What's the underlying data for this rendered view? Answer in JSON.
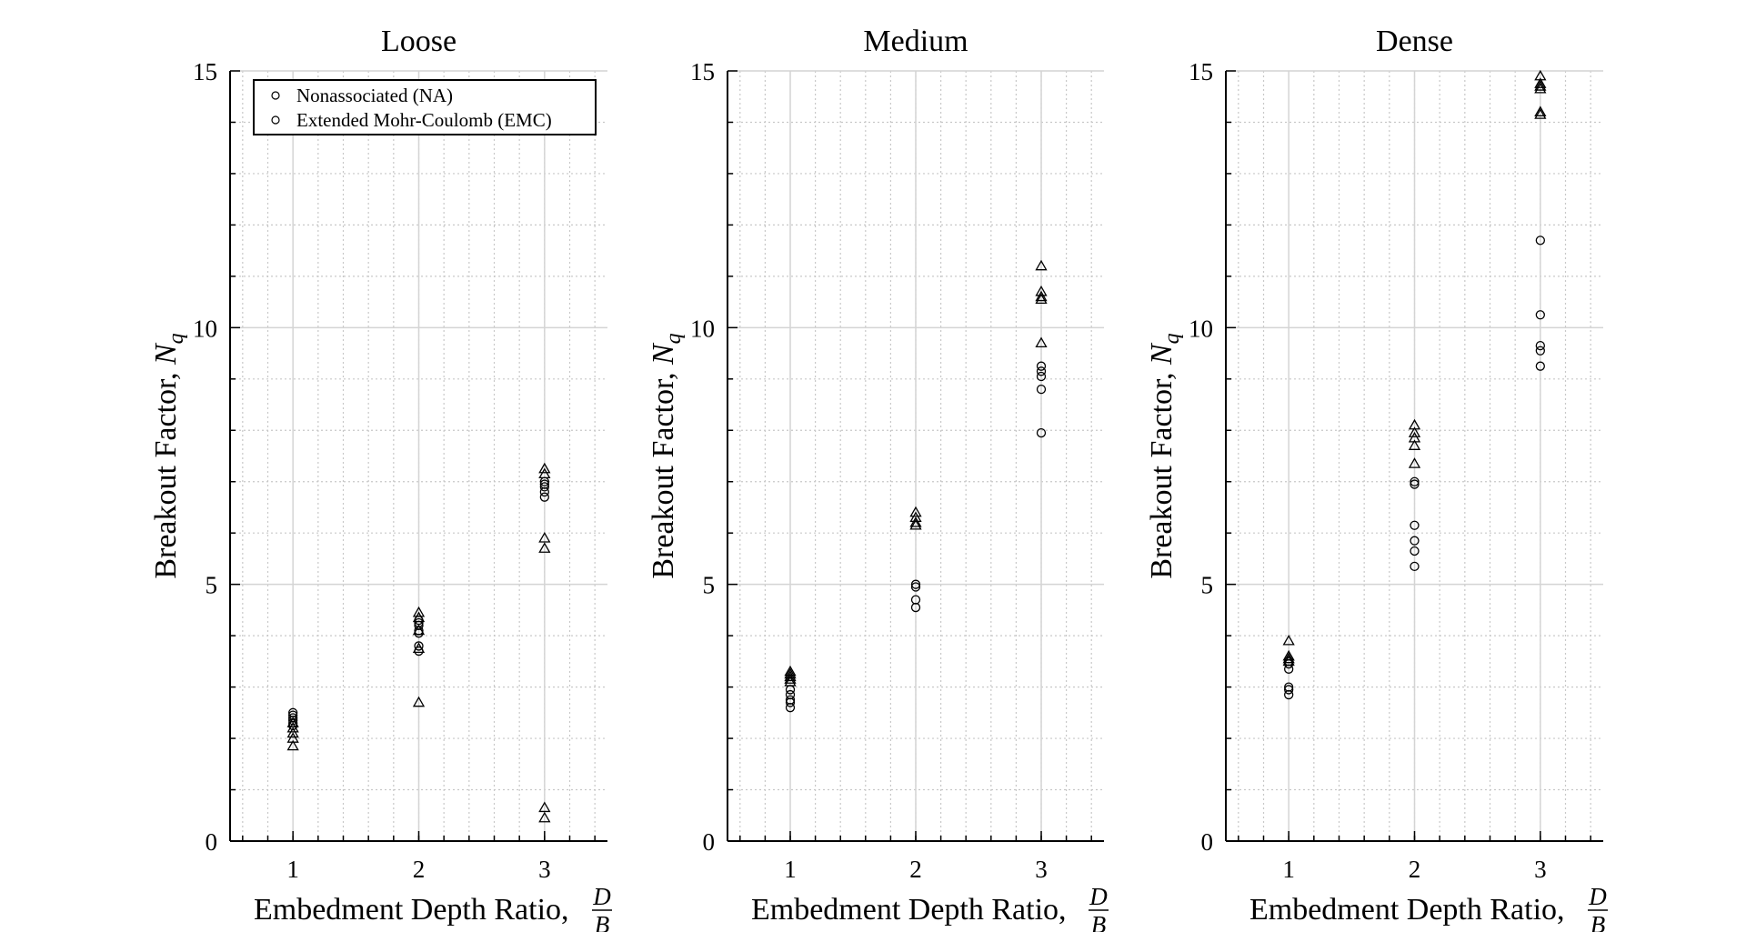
{
  "chart_data": [
    {
      "type": "scatter",
      "title": "Loose",
      "xlabel": "Embedment Depth Ratio,",
      "xlabel_frac": {
        "num": "D",
        "den": "B"
      },
      "ylabel": "Breakout Factor,",
      "ylabel_symbol": {
        "base": "N",
        "sub": "q"
      },
      "xlim": [
        0.5,
        3.5
      ],
      "ylim": [
        0,
        15
      ],
      "xticks": [
        "1",
        "2",
        "3"
      ],
      "yticks": [
        "0",
        "5",
        "10",
        "15"
      ],
      "grid": true,
      "minor_grid": true,
      "legend": {
        "placement": "top-left",
        "entries": [
          "Nonassociated (NA)",
          "Extended Mohr-Coulomb (EMC)"
        ]
      },
      "series": [
        {
          "marker": "circle",
          "x": [
            1,
            1,
            1,
            1,
            1,
            1,
            2,
            2,
            2,
            2,
            2,
            2,
            2,
            3,
            3,
            3,
            3,
            3
          ],
          "y": [
            2.5,
            2.45,
            2.4,
            2.35,
            2.3,
            2.25,
            4.3,
            4.25,
            4.2,
            4.1,
            4.05,
            3.8,
            3.7,
            7.0,
            6.95,
            6.9,
            6.8,
            6.7
          ]
        },
        {
          "marker": "triangle",
          "x": [
            1,
            1,
            1,
            1,
            1,
            2,
            2,
            2,
            2,
            2,
            3,
            3,
            3,
            3,
            3,
            3
          ],
          "y": [
            2.3,
            2.2,
            2.1,
            2.0,
            1.85,
            4.45,
            4.35,
            4.1,
            3.75,
            2.7,
            7.25,
            7.15,
            5.9,
            5.7,
            0.65,
            0.45
          ]
        }
      ]
    },
    {
      "type": "scatter",
      "title": "Medium",
      "xlabel": "Embedment Depth Ratio,",
      "xlabel_frac": {
        "num": "D",
        "den": "B"
      },
      "ylabel": "Breakout Factor,",
      "ylabel_symbol": {
        "base": "N",
        "sub": "q"
      },
      "xlim": [
        0.5,
        3.5
      ],
      "ylim": [
        0,
        15
      ],
      "xticks": [
        "1",
        "2",
        "3"
      ],
      "yticks": [
        "0",
        "5",
        "10",
        "15"
      ],
      "grid": true,
      "minor_grid": true,
      "series": [
        {
          "marker": "circle",
          "x": [
            1,
            1,
            1,
            1,
            1,
            2,
            2,
            2,
            2,
            3,
            3,
            3,
            3,
            3
          ],
          "y": [
            2.95,
            2.85,
            2.75,
            2.7,
            2.6,
            5.0,
            4.95,
            4.7,
            4.55,
            9.25,
            9.15,
            9.05,
            8.8,
            7.95
          ]
        },
        {
          "marker": "triangle",
          "x": [
            1,
            1,
            1,
            1,
            1,
            2,
            2,
            2,
            2,
            3,
            3,
            3,
            3,
            3
          ],
          "y": [
            3.3,
            3.25,
            3.2,
            3.15,
            3.1,
            6.4,
            6.3,
            6.2,
            6.15,
            11.2,
            10.7,
            10.6,
            10.55,
            9.7
          ]
        }
      ]
    },
    {
      "type": "scatter",
      "title": "Dense",
      "xlabel": "Embedment Depth Ratio,",
      "xlabel_frac": {
        "num": "D",
        "den": "B"
      },
      "ylabel": "Breakout Factor,",
      "ylabel_symbol": {
        "base": "N",
        "sub": "q"
      },
      "xlim": [
        0.5,
        3.5
      ],
      "ylim": [
        0,
        15
      ],
      "xticks": [
        "1",
        "2",
        "3"
      ],
      "yticks": [
        "0",
        "5",
        "10",
        "15"
      ],
      "grid": true,
      "minor_grid": true,
      "series": [
        {
          "marker": "circle",
          "x": [
            1,
            1,
            1,
            1,
            1,
            1,
            2,
            2,
            2,
            2,
            2,
            2,
            3,
            3,
            3,
            3,
            3
          ],
          "y": [
            3.5,
            3.45,
            3.35,
            3.0,
            2.95,
            2.85,
            7.0,
            6.95,
            6.15,
            5.85,
            5.65,
            5.35,
            11.7,
            10.25,
            9.65,
            9.55,
            9.25
          ]
        },
        {
          "marker": "triangle",
          "x": [
            1,
            1,
            1,
            1,
            2,
            2,
            2,
            2,
            2,
            3,
            3,
            3,
            3,
            3,
            3
          ],
          "y": [
            3.9,
            3.6,
            3.55,
            3.5,
            8.1,
            7.95,
            7.85,
            7.7,
            7.35,
            14.9,
            14.75,
            14.7,
            14.65,
            14.2,
            14.15
          ]
        }
      ]
    }
  ]
}
